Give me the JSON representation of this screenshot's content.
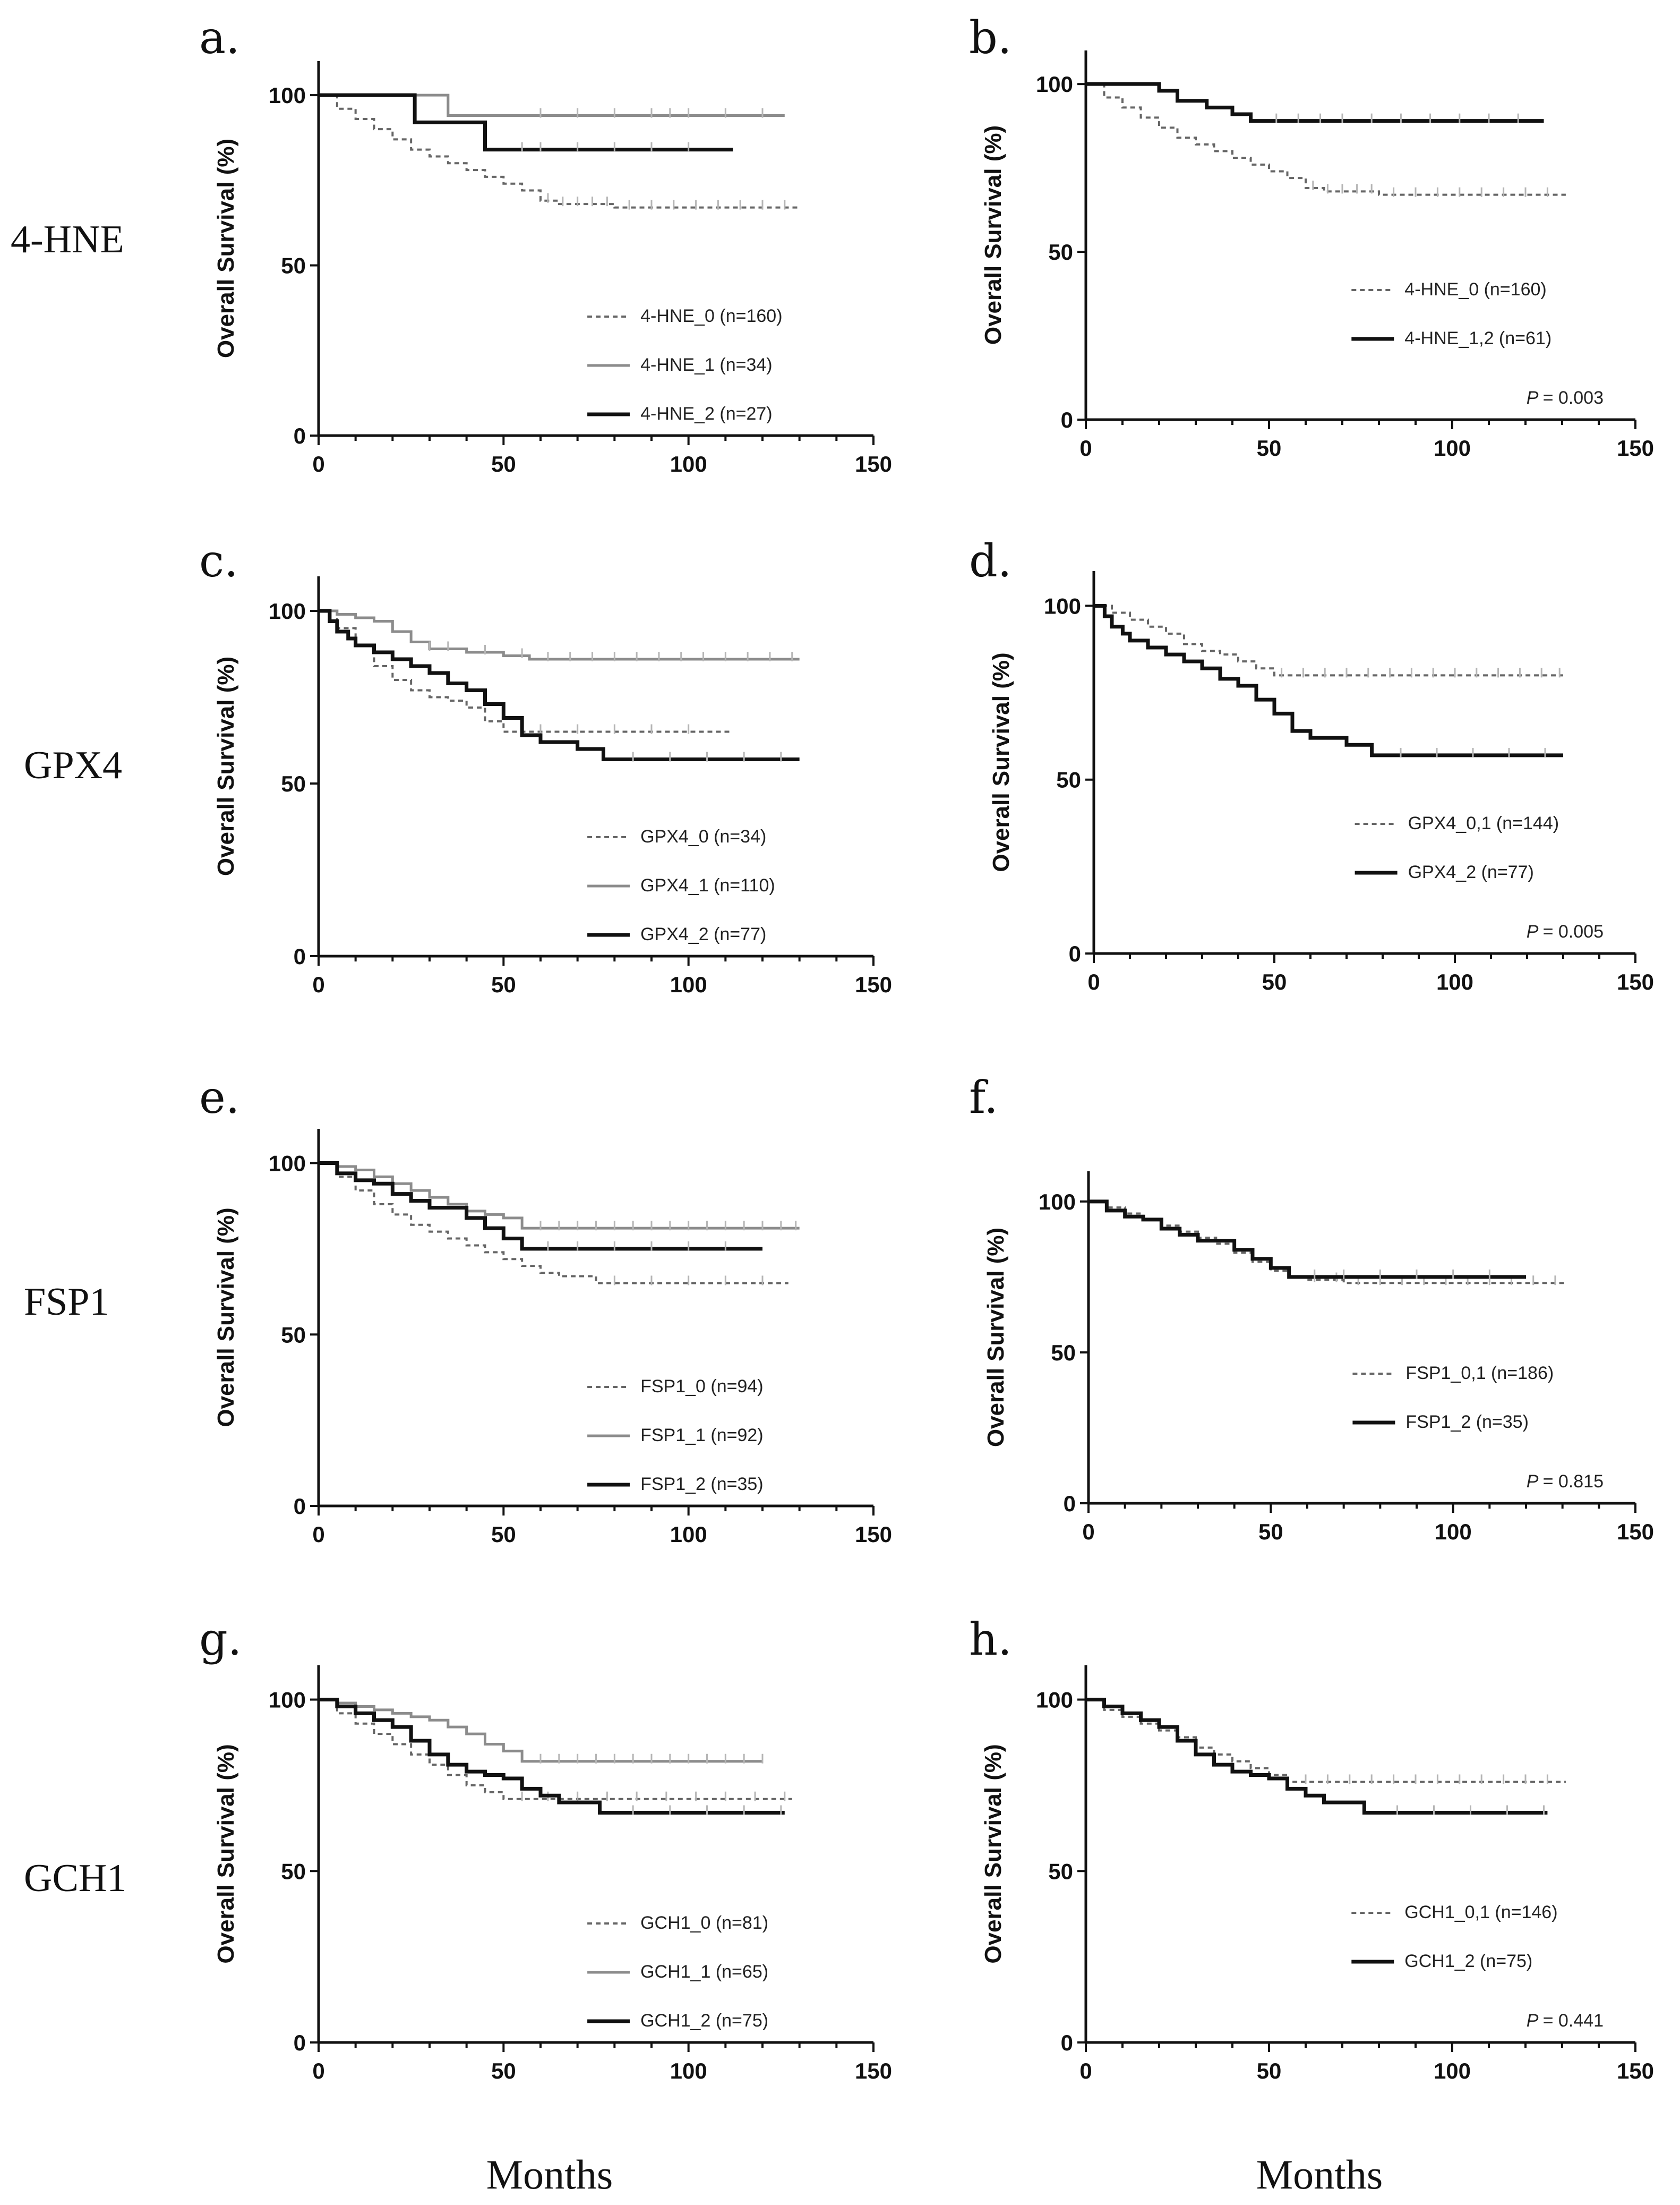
{
  "figure": {
    "row_labels": [
      "4-HNE",
      "GPX4",
      "FSP1",
      "GCH1"
    ],
    "x_axis_labels": [
      "Months",
      "Months"
    ]
  },
  "styles": {
    "dotted_gray": "#666666",
    "solid_light_gray": "#8c8c8c",
    "solid_black": "#111111",
    "censor_tick": "#b5b5b5"
  },
  "chart_data": [
    {
      "id": "a",
      "panel_label": "a.",
      "type": "line",
      "subtype": "kaplan-meier",
      "ylabel": "Overall Survival (%)",
      "xlabel": "",
      "xlim": [
        0,
        150
      ],
      "ylim": [
        0,
        110
      ],
      "xticks": [
        0,
        50,
        100,
        150
      ],
      "yticks": [
        0,
        50,
        100
      ],
      "pvalue": "",
      "series": [
        {
          "name": "4-HNE_0 (n=160)",
          "style": "dotted_gray",
          "x": [
            0,
            5,
            10,
            15,
            20,
            25,
            30,
            35,
            40,
            45,
            50,
            55,
            60,
            65,
            70,
            80,
            130
          ],
          "y": [
            100,
            96,
            93,
            90,
            87,
            84,
            82,
            80,
            78,
            76,
            74,
            72,
            69,
            68,
            68,
            67,
            67
          ],
          "censor_x": [
            62,
            66,
            70,
            74,
            78,
            84,
            90,
            96,
            102,
            108,
            114,
            120,
            126
          ]
        },
        {
          "name": "4-HNE_1 (n=34)",
          "style": "solid_light_gray",
          "x": [
            0,
            24,
            35,
            126
          ],
          "y": [
            100,
            100,
            94,
            94
          ],
          "censor_x": [
            60,
            70,
            80,
            90,
            95,
            100,
            110,
            120
          ]
        },
        {
          "name": "4-HNE_2 (n=27)",
          "style": "solid_black",
          "x": [
            0,
            22,
            26,
            42,
            45,
            112
          ],
          "y": [
            100,
            100,
            92,
            92,
            84,
            84
          ],
          "censor_x": [
            55,
            60,
            70,
            80,
            90,
            100
          ]
        }
      ]
    },
    {
      "id": "b",
      "panel_label": "b.",
      "type": "line",
      "subtype": "kaplan-meier",
      "ylabel": "Overall Survival (%)",
      "xlabel": "",
      "xlim": [
        0,
        150
      ],
      "ylim": [
        0,
        110
      ],
      "xticks": [
        0,
        50,
        100,
        150
      ],
      "yticks": [
        0,
        50,
        100
      ],
      "pvalue": "= 0.003",
      "series": [
        {
          "name": "4-HNE_0 (n=160)",
          "style": "dotted_gray",
          "x": [
            0,
            5,
            10,
            15,
            20,
            25,
            30,
            35,
            40,
            45,
            50,
            55,
            60,
            65,
            70,
            80,
            131
          ],
          "y": [
            100,
            96,
            93,
            90,
            87,
            84,
            82,
            80,
            78,
            76,
            74,
            72,
            69,
            68,
            68,
            67,
            67
          ],
          "censor_x": [
            62,
            66,
            70,
            74,
            78,
            84,
            90,
            96,
            102,
            108,
            114,
            120,
            126
          ]
        },
        {
          "name": "4-HNE_1,2 (n=61)",
          "style": "solid_black",
          "x": [
            0,
            15,
            20,
            25,
            33,
            40,
            45,
            125
          ],
          "y": [
            100,
            100,
            98,
            95,
            93,
            91,
            89,
            89
          ],
          "censor_x": [
            52,
            58,
            64,
            70,
            78,
            86,
            94,
            102,
            110,
            118
          ]
        }
      ]
    },
    {
      "id": "c",
      "panel_label": "c.",
      "type": "line",
      "subtype": "kaplan-meier",
      "ylabel": "Overall Survival (%)",
      "xlabel": "",
      "xlim": [
        0,
        150
      ],
      "ylim": [
        0,
        110
      ],
      "xticks": [
        0,
        50,
        100,
        150
      ],
      "yticks": [
        0,
        50,
        100
      ],
      "pvalue": "",
      "series": [
        {
          "name": "GPX4_0 (n=34)",
          "style": "dotted_gray",
          "x": [
            0,
            5,
            10,
            15,
            20,
            25,
            30,
            35,
            40,
            45,
            50,
            112
          ],
          "y": [
            100,
            95,
            90,
            84,
            80,
            77,
            75,
            74,
            72,
            68,
            65,
            65
          ],
          "censor_x": [
            60,
            70,
            80,
            90,
            100
          ]
        },
        {
          "name": "GPX4_1 (n=110)",
          "style": "solid_light_gray",
          "x": [
            0,
            5,
            10,
            15,
            20,
            25,
            30,
            40,
            50,
            57,
            130
          ],
          "y": [
            100,
            99,
            98,
            97,
            94,
            91,
            89,
            88,
            87,
            86,
            86
          ],
          "censor_x": [
            30,
            35,
            45,
            55,
            62,
            68,
            74,
            80,
            86,
            92,
            98,
            104,
            110,
            116,
            122,
            128
          ]
        },
        {
          "name": "GPX4_2 (n=77)",
          "style": "solid_black",
          "x": [
            0,
            3,
            5,
            8,
            10,
            15,
            20,
            25,
            30,
            35,
            40,
            45,
            50,
            55,
            60,
            70,
            77,
            130
          ],
          "y": [
            100,
            97,
            94,
            92,
            90,
            88,
            86,
            84,
            82,
            79,
            77,
            73,
            69,
            64,
            62,
            60,
            57,
            57
          ],
          "censor_x": [
            85,
            95,
            105,
            115,
            125
          ]
        }
      ]
    },
    {
      "id": "d",
      "panel_label": "d.",
      "type": "line",
      "subtype": "kaplan-meier",
      "ylabel": "Overall Survival (%)",
      "xlabel": "",
      "xlim": [
        0,
        150
      ],
      "ylim": [
        0,
        110
      ],
      "xticks": [
        0,
        50,
        100,
        150
      ],
      "yticks": [
        0,
        50,
        100
      ],
      "pvalue": "= 0.005",
      "series": [
        {
          "name": "GPX4_0,1 (n=144)",
          "style": "dotted_gray",
          "x": [
            0,
            5,
            10,
            15,
            20,
            25,
            30,
            35,
            40,
            45,
            50,
            130
          ],
          "y": [
            100,
            98,
            96,
            94,
            92,
            89,
            87,
            86,
            84,
            82,
            80,
            80
          ],
          "censor_x": [
            52,
            58,
            64,
            70,
            76,
            82,
            88,
            94,
            100,
            106,
            112,
            118,
            124,
            129
          ]
        },
        {
          "name": "GPX4_2 (n=77)",
          "style": "solid_black",
          "x": [
            0,
            3,
            5,
            8,
            10,
            15,
            20,
            25,
            30,
            35,
            40,
            45,
            50,
            55,
            60,
            70,
            77,
            130
          ],
          "y": [
            100,
            97,
            94,
            92,
            90,
            88,
            86,
            84,
            82,
            79,
            77,
            73,
            69,
            64,
            62,
            60,
            57,
            57
          ],
          "censor_x": [
            85,
            95,
            105,
            115,
            125
          ]
        }
      ]
    },
    {
      "id": "e",
      "panel_label": "e.",
      "type": "line",
      "subtype": "kaplan-meier",
      "ylabel": "Overall Survival (%)",
      "xlabel": "",
      "xlim": [
        0,
        150
      ],
      "ylim": [
        0,
        110
      ],
      "xticks": [
        0,
        50,
        100,
        150
      ],
      "yticks": [
        0,
        50,
        100
      ],
      "pvalue": "",
      "series": [
        {
          "name": "FSP1_0 (n=94)",
          "style": "dotted_gray",
          "x": [
            0,
            5,
            10,
            15,
            20,
            25,
            30,
            35,
            40,
            45,
            50,
            55,
            60,
            65,
            75,
            127
          ],
          "y": [
            100,
            96,
            92,
            88,
            85,
            82,
            80,
            78,
            76,
            74,
            72,
            70,
            68,
            67,
            65,
            65
          ],
          "censor_x": [
            80,
            90,
            100,
            110,
            120
          ]
        },
        {
          "name": "FSP1_1 (n=92)",
          "style": "solid_light_gray",
          "x": [
            0,
            5,
            10,
            15,
            20,
            25,
            30,
            35,
            40,
            45,
            50,
            55,
            130
          ],
          "y": [
            100,
            99,
            98,
            96,
            94,
            92,
            90,
            88,
            86,
            85,
            84,
            81,
            81
          ],
          "censor_x": [
            60,
            65,
            70,
            75,
            80,
            85,
            90,
            95,
            100,
            105,
            110,
            115,
            120,
            125,
            129
          ]
        },
        {
          "name": "FSP1_2 (n=35)",
          "style": "solid_black",
          "x": [
            0,
            5,
            10,
            15,
            20,
            25,
            30,
            35,
            40,
            45,
            50,
            55,
            120
          ],
          "y": [
            100,
            97,
            95,
            94,
            91,
            89,
            87,
            87,
            84,
            81,
            78,
            75,
            75
          ],
          "censor_x": [
            62,
            70,
            80,
            90,
            100,
            110
          ]
        }
      ]
    },
    {
      "id": "f",
      "panel_label": "f.",
      "type": "line",
      "subtype": "kaplan-meier",
      "ylabel": "Overall Survival (%)",
      "xlabel": "",
      "xlim": [
        0,
        150
      ],
      "ylim": [
        0,
        110
      ],
      "xticks": [
        0,
        50,
        100,
        150
      ],
      "yticks": [
        0,
        50,
        100
      ],
      "pvalue": "= 0.815",
      "series": [
        {
          "name": "FSP1_0,1 (n=186)",
          "style": "dotted_gray",
          "x": [
            0,
            5,
            10,
            15,
            20,
            25,
            30,
            35,
            40,
            45,
            50,
            55,
            60,
            70,
            131
          ],
          "y": [
            100,
            98,
            96,
            94,
            92,
            90,
            88,
            86,
            83,
            80,
            77,
            75,
            74,
            73,
            73
          ],
          "censor_x": [
            62,
            68,
            74,
            80,
            86,
            92,
            98,
            104,
            110,
            116,
            122,
            128
          ]
        },
        {
          "name": "FSP1_2 (n=35)",
          "style": "solid_black",
          "x": [
            0,
            5,
            10,
            15,
            20,
            25,
            30,
            35,
            40,
            45,
            50,
            55,
            120
          ],
          "y": [
            100,
            97,
            95,
            94,
            91,
            89,
            87,
            87,
            84,
            81,
            78,
            75,
            75
          ],
          "censor_x": [
            62,
            70,
            80,
            90,
            100,
            110
          ]
        }
      ]
    },
    {
      "id": "g",
      "panel_label": "g.",
      "type": "line",
      "subtype": "kaplan-meier",
      "ylabel": "Overall Survival (%)",
      "xlabel": "",
      "xlim": [
        0,
        150
      ],
      "ylim": [
        0,
        110
      ],
      "xticks": [
        0,
        50,
        100,
        150
      ],
      "yticks": [
        0,
        50,
        100
      ],
      "pvalue": "",
      "series": [
        {
          "name": "GCH1_0 (n=81)",
          "style": "dotted_gray",
          "x": [
            0,
            5,
            10,
            15,
            20,
            25,
            30,
            35,
            40,
            45,
            50,
            128
          ],
          "y": [
            100,
            96,
            93,
            90,
            87,
            84,
            81,
            78,
            75,
            73,
            71,
            71
          ],
          "censor_x": [
            55,
            62,
            70,
            78,
            86,
            94,
            102,
            110,
            118,
            126
          ]
        },
        {
          "name": "GCH1_1 (n=65)",
          "style": "solid_light_gray",
          "x": [
            0,
            5,
            10,
            15,
            20,
            25,
            30,
            35,
            40,
            45,
            50,
            55,
            120
          ],
          "y": [
            100,
            99,
            98,
            97,
            96,
            95,
            94,
            92,
            90,
            87,
            85,
            82,
            82
          ],
          "censor_x": [
            60,
            65,
            70,
            75,
            80,
            85,
            90,
            95,
            100,
            105,
            110,
            115,
            120
          ]
        },
        {
          "name": "GCH1_2 (n=75)",
          "style": "solid_black",
          "x": [
            0,
            5,
            10,
            15,
            20,
            25,
            30,
            35,
            40,
            45,
            50,
            55,
            60,
            65,
            76,
            126
          ],
          "y": [
            100,
            98,
            96,
            94,
            92,
            88,
            84,
            81,
            79,
            78,
            77,
            74,
            72,
            70,
            67,
            67
          ],
          "censor_x": [
            85,
            95,
            105,
            115,
            125
          ]
        }
      ]
    },
    {
      "id": "h",
      "panel_label": "h.",
      "type": "line",
      "subtype": "kaplan-meier",
      "ylabel": "Overall Survival (%)",
      "xlabel": "",
      "xlim": [
        0,
        150
      ],
      "ylim": [
        0,
        110
      ],
      "xticks": [
        0,
        50,
        100,
        150
      ],
      "yticks": [
        0,
        50,
        100
      ],
      "pvalue": "= 0.441",
      "series": [
        {
          "name": "GCH1_0,1 (n=146)",
          "style": "dotted_gray",
          "x": [
            0,
            5,
            10,
            15,
            20,
            25,
            30,
            35,
            40,
            45,
            50,
            55,
            131
          ],
          "y": [
            100,
            97,
            95,
            93,
            91,
            89,
            86,
            84,
            82,
            80,
            78,
            76,
            76
          ],
          "censor_x": [
            60,
            66,
            72,
            78,
            84,
            90,
            96,
            102,
            108,
            114,
            120,
            126
          ]
        },
        {
          "name": "GCH1_2 (n=75)",
          "style": "solid_black",
          "x": [
            0,
            5,
            10,
            15,
            20,
            25,
            30,
            35,
            40,
            45,
            50,
            55,
            60,
            65,
            76,
            126
          ],
          "y": [
            100,
            98,
            96,
            94,
            92,
            88,
            84,
            81,
            79,
            78,
            77,
            74,
            72,
            70,
            67,
            67
          ],
          "censor_x": [
            85,
            95,
            105,
            115,
            125
          ]
        }
      ]
    }
  ]
}
